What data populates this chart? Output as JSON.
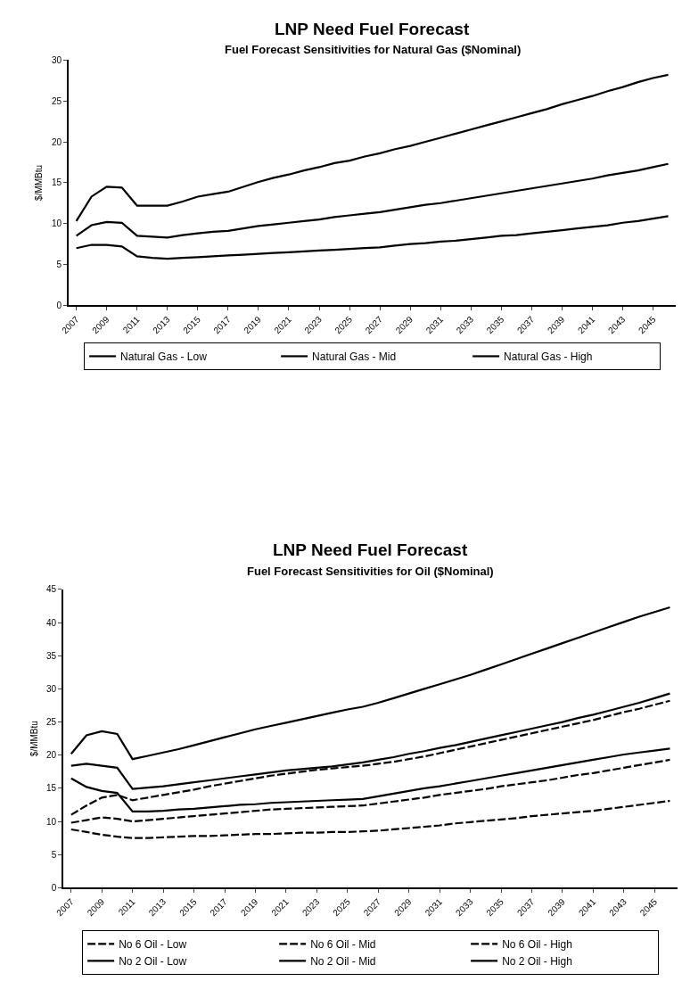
{
  "chart_data": [
    {
      "type": "line",
      "title": "LNP Need Fuel Forecast",
      "subtitle": "Fuel Forecast Sensitivities for Natural Gas ($Nominal)",
      "ylabel": "$/MMBtu",
      "categories": [
        "2007",
        null,
        "2009",
        null,
        "2011",
        null,
        "2013",
        null,
        "2015",
        null,
        "2017",
        null,
        "2019",
        null,
        "2021",
        null,
        "2023",
        null,
        "2025",
        null,
        "2027",
        null,
        "2029",
        null,
        "2031",
        null,
        "2033",
        null,
        "2035",
        null,
        "2037",
        null,
        "2039",
        null,
        "2041",
        null,
        "2043",
        null,
        "2045",
        null
      ],
      "ylim": [
        0,
        30
      ],
      "yticks": [
        0,
        5,
        10,
        15,
        20,
        25,
        30
      ],
      "legend": "bottom",
      "marker": "none",
      "series": [
        {
          "name": "Natural Gas - Low",
          "color": "#000000",
          "line_style": "solid",
          "values": [
            7.0,
            7.4,
            7.4,
            7.2,
            6.0,
            5.8,
            5.7,
            5.8,
            5.9,
            6.0,
            6.1,
            6.2,
            6.3,
            6.4,
            6.5,
            6.6,
            6.7,
            6.8,
            6.9,
            7.0,
            7.1,
            7.3,
            7.5,
            7.6,
            7.8,
            7.9,
            8.1,
            8.3,
            8.5,
            8.6,
            8.8,
            9.0,
            9.2,
            9.4,
            9.6,
            9.8,
            10.1,
            10.3,
            10.6,
            10.9
          ]
        },
        {
          "name": "Natural Gas - Mid",
          "color": "#000000",
          "line_style": "solid",
          "values": [
            8.5,
            9.8,
            10.2,
            10.1,
            8.5,
            8.4,
            8.3,
            8.6,
            8.8,
            9.0,
            9.1,
            9.4,
            9.7,
            9.9,
            10.1,
            10.3,
            10.5,
            10.8,
            11.0,
            11.2,
            11.4,
            11.7,
            12.0,
            12.3,
            12.5,
            12.8,
            13.1,
            13.4,
            13.7,
            14.0,
            14.3,
            14.6,
            14.9,
            15.2,
            15.5,
            15.9,
            16.2,
            16.5,
            16.9,
            17.3
          ]
        },
        {
          "name": "Natural Gas - High",
          "color": "#000000",
          "line_style": "solid",
          "values": [
            10.3,
            13.3,
            14.5,
            14.4,
            12.2,
            12.2,
            12.2,
            12.7,
            13.3,
            13.6,
            13.9,
            14.5,
            15.1,
            15.6,
            16.0,
            16.5,
            16.9,
            17.4,
            17.7,
            18.2,
            18.6,
            19.1,
            19.5,
            20.0,
            20.5,
            21.0,
            21.5,
            22.0,
            22.5,
            23.0,
            23.5,
            24.0,
            24.6,
            25.1,
            25.6,
            26.2,
            26.7,
            27.3,
            27.8,
            28.2
          ]
        }
      ]
    },
    {
      "type": "line",
      "title": "LNP Need Fuel Forecast",
      "subtitle": "Fuel Forecast Sensitivities for Oil ($Nominal)",
      "ylabel": "$/MMBtu",
      "categories": [
        "2007",
        null,
        "2009",
        null,
        "2011",
        null,
        "2013",
        null,
        "2015",
        null,
        "2017",
        null,
        "2019",
        null,
        "2021",
        null,
        "2023",
        null,
        "2025",
        null,
        "2027",
        null,
        "2029",
        null,
        "2031",
        null,
        "2033",
        null,
        "2035",
        null,
        "2037",
        null,
        "2039",
        null,
        "2041",
        null,
        "2043",
        null,
        "2045",
        null
      ],
      "ylim": [
        0,
        45
      ],
      "yticks": [
        0,
        5,
        10,
        15,
        20,
        25,
        30,
        35,
        40,
        45
      ],
      "legend": "bottom",
      "marker": "none",
      "series": [
        {
          "name": "No 6 Oil - Low",
          "color": "#000000",
          "line_style": "dashed",
          "values": [
            8.8,
            8.4,
            8.0,
            7.7,
            7.5,
            7.5,
            7.6,
            7.7,
            7.8,
            7.8,
            7.9,
            8.0,
            8.1,
            8.1,
            8.2,
            8.3,
            8.3,
            8.4,
            8.4,
            8.5,
            8.6,
            8.8,
            9.0,
            9.2,
            9.4,
            9.7,
            9.9,
            10.1,
            10.3,
            10.5,
            10.8,
            11.0,
            11.2,
            11.4,
            11.6,
            11.9,
            12.2,
            12.5,
            12.8,
            13.1
          ]
        },
        {
          "name": "No 6 Oil - Mid",
          "color": "#000000",
          "line_style": "dashed",
          "values": [
            9.8,
            10.2,
            10.6,
            10.4,
            10.0,
            10.2,
            10.4,
            10.6,
            10.8,
            11.0,
            11.2,
            11.4,
            11.6,
            11.8,
            11.9,
            12.0,
            12.1,
            12.2,
            12.3,
            12.4,
            12.7,
            13.0,
            13.3,
            13.6,
            14.0,
            14.3,
            14.6,
            14.9,
            15.3,
            15.6,
            15.9,
            16.2,
            16.6,
            17.0,
            17.3,
            17.7,
            18.1,
            18.5,
            18.9,
            19.3
          ]
        },
        {
          "name": "No 6 Oil - High",
          "color": "#000000",
          "line_style": "dashed",
          "values": [
            11.0,
            12.4,
            13.6,
            14.0,
            13.2,
            13.6,
            14.0,
            14.4,
            14.8,
            15.3,
            15.7,
            16.1,
            16.5,
            16.9,
            17.2,
            17.5,
            17.8,
            18.0,
            18.2,
            18.4,
            18.7,
            19.0,
            19.4,
            19.8,
            20.3,
            20.8,
            21.3,
            21.8,
            22.3,
            22.8,
            23.3,
            23.8,
            24.3,
            24.8,
            25.3,
            25.9,
            26.5,
            27.0,
            27.6,
            28.2
          ]
        },
        {
          "name": "No 2 Oil - Low",
          "color": "#000000",
          "line_style": "solid",
          "values": [
            16.5,
            15.2,
            14.6,
            14.3,
            11.5,
            11.5,
            11.6,
            11.8,
            11.9,
            12.1,
            12.3,
            12.5,
            12.6,
            12.8,
            12.9,
            13.0,
            13.1,
            13.2,
            13.3,
            13.4,
            13.8,
            14.2,
            14.6,
            15.0,
            15.3,
            15.7,
            16.1,
            16.5,
            16.9,
            17.3,
            17.7,
            18.1,
            18.5,
            18.9,
            19.3,
            19.7,
            20.1,
            20.4,
            20.7,
            21.0
          ]
        },
        {
          "name": "No 2 Oil - Mid",
          "color": "#000000",
          "line_style": "solid",
          "values": [
            18.4,
            18.7,
            18.4,
            18.1,
            14.9,
            15.1,
            15.3,
            15.6,
            15.9,
            16.2,
            16.5,
            16.8,
            17.1,
            17.4,
            17.7,
            17.9,
            18.1,
            18.3,
            18.6,
            18.9,
            19.3,
            19.7,
            20.2,
            20.6,
            21.1,
            21.5,
            22.0,
            22.5,
            23.0,
            23.5,
            24.0,
            24.5,
            25.0,
            25.6,
            26.1,
            26.7,
            27.3,
            27.9,
            28.6,
            29.3
          ]
        },
        {
          "name": "No 2 Oil - High",
          "color": "#000000",
          "line_style": "solid",
          "values": [
            20.2,
            23.0,
            23.6,
            23.2,
            19.4,
            19.9,
            20.4,
            20.9,
            21.5,
            22.1,
            22.7,
            23.3,
            23.9,
            24.4,
            24.9,
            25.4,
            25.9,
            26.4,
            26.9,
            27.3,
            27.9,
            28.6,
            29.3,
            30.0,
            30.7,
            31.4,
            32.1,
            32.9,
            33.7,
            34.5,
            35.3,
            36.1,
            36.9,
            37.7,
            38.5,
            39.3,
            40.1,
            40.9,
            41.6,
            42.3
          ]
        }
      ]
    }
  ]
}
